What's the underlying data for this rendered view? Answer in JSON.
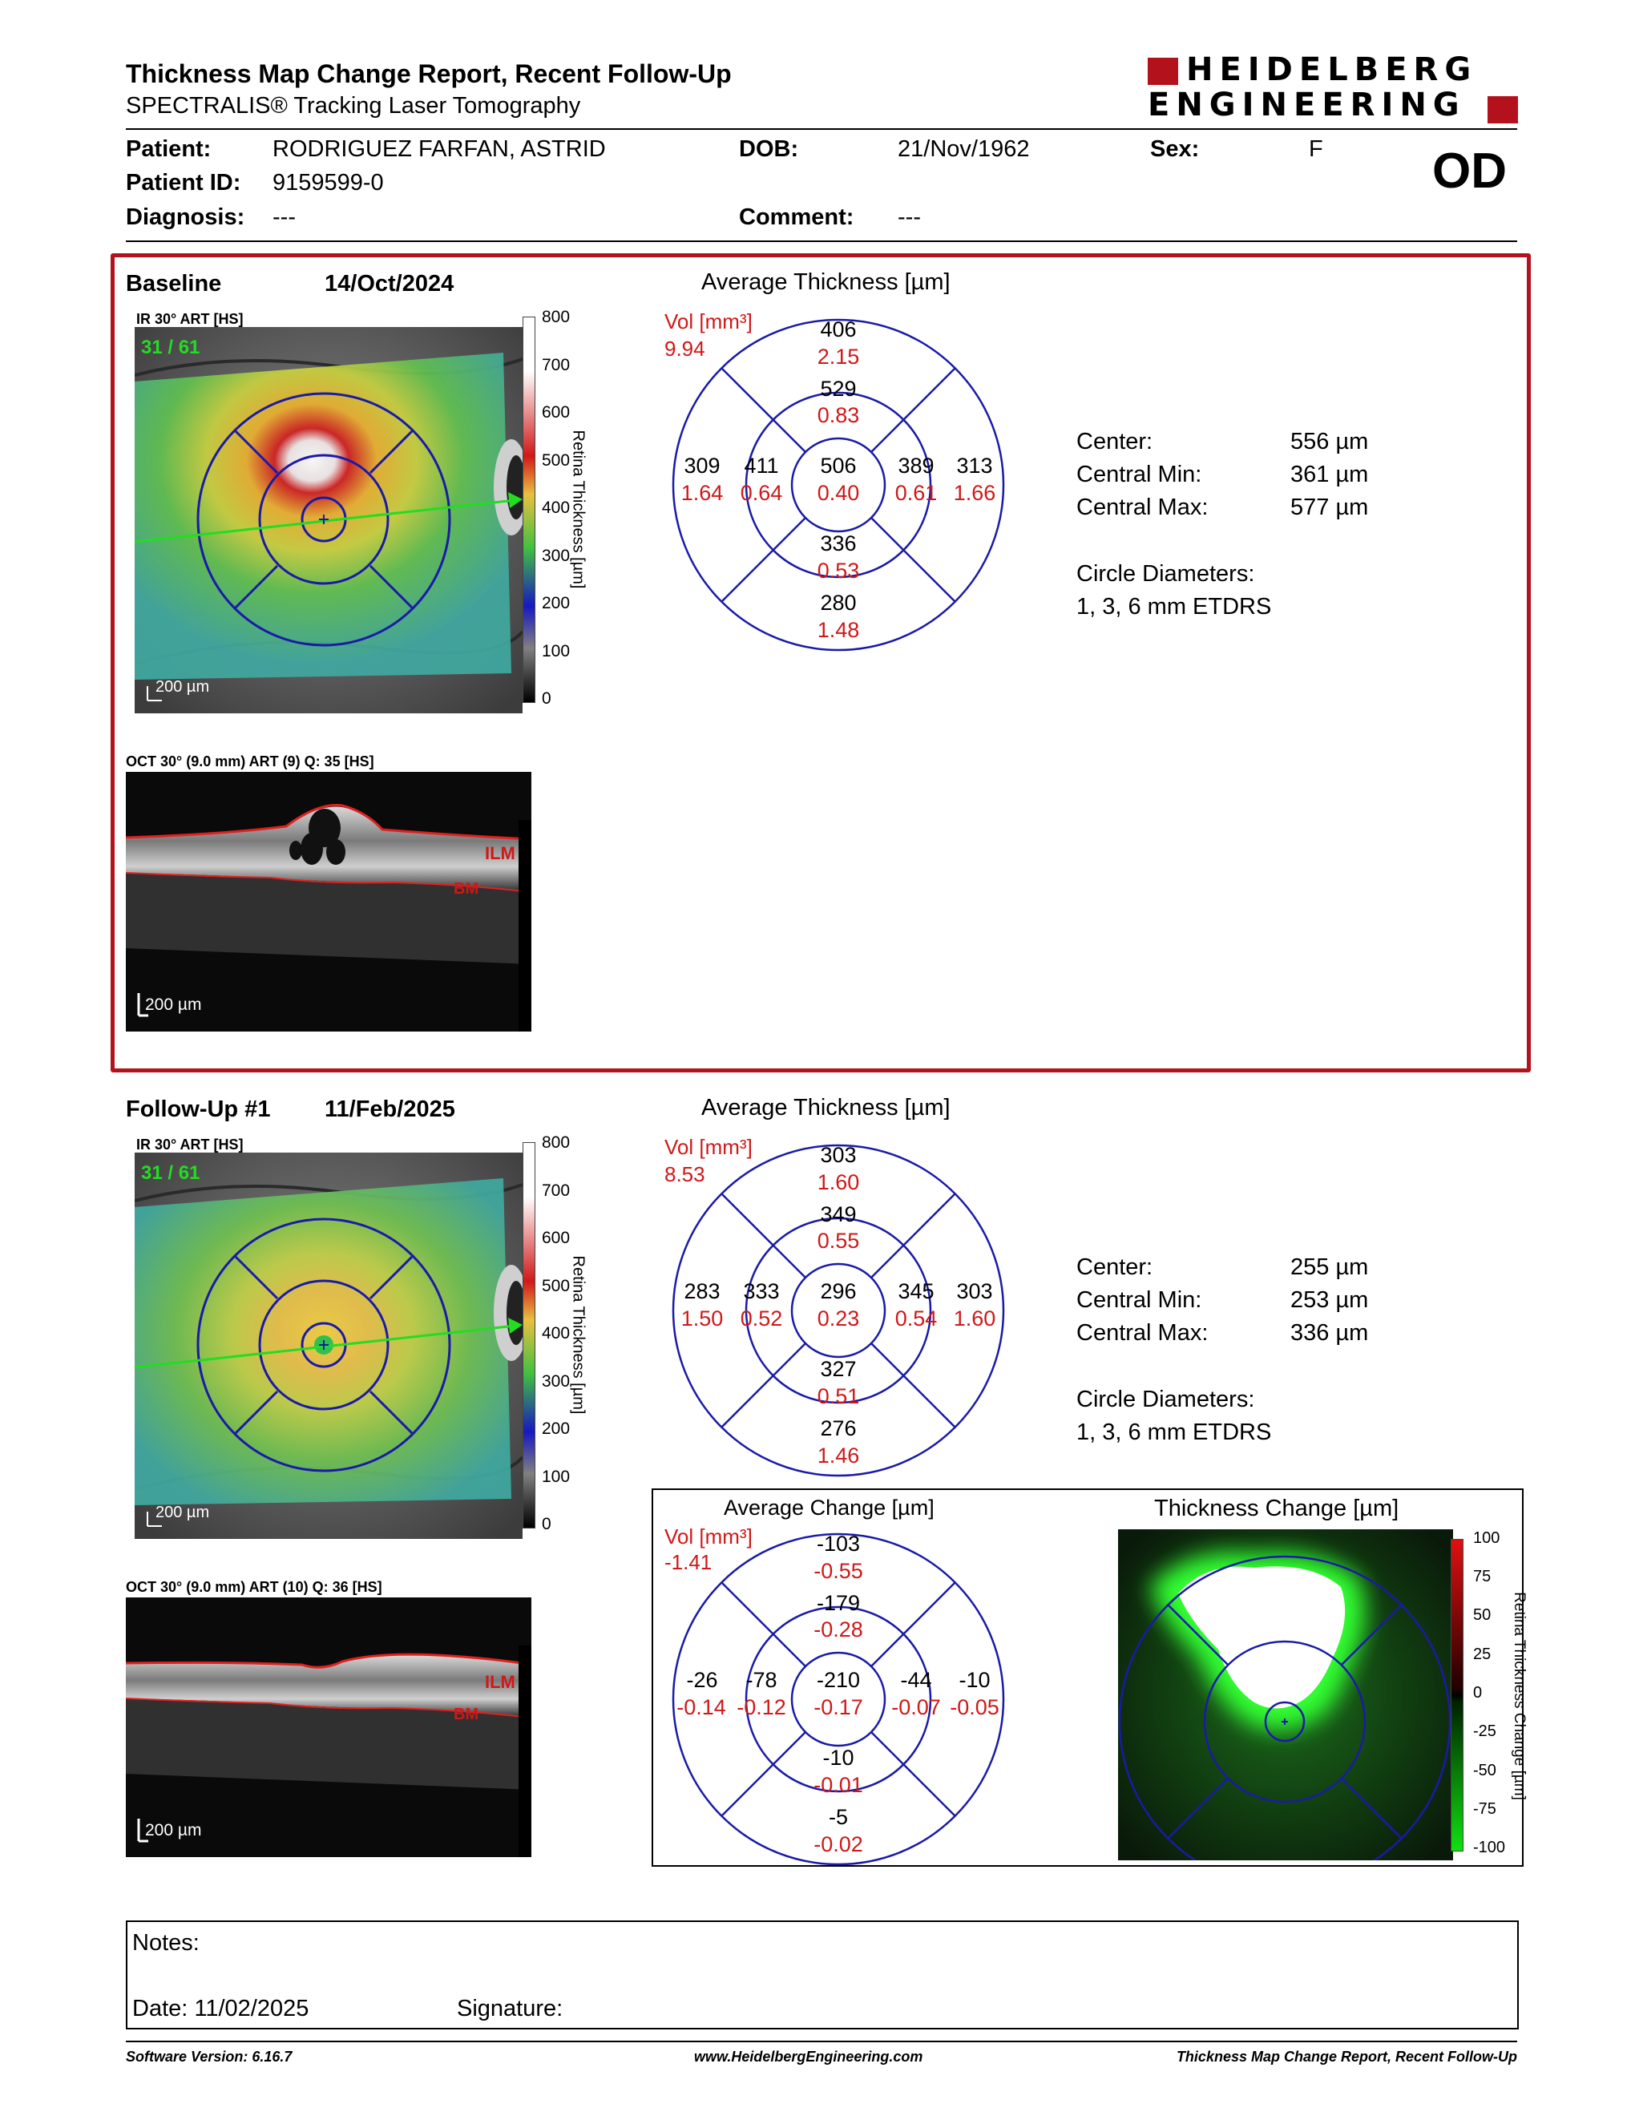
{
  "header": {
    "title": "Thickness Map Change Report, Recent Follow-Up",
    "subtitle": "SPECTRALIS® Tracking Laser Tomography",
    "logo_line1": "HEIDELBERG",
    "logo_line2": "ENGINEERING",
    "eye": "OD"
  },
  "patient": {
    "patient_label": "Patient:",
    "patient_value": "RODRIGUEZ FARFAN, ASTRID",
    "id_label": "Patient ID:",
    "id_value": "9159599-0",
    "diagnosis_label": "Diagnosis:",
    "diagnosis_value": "---",
    "dob_label": "DOB:",
    "dob_value": "21/Nov/1962",
    "comment_label": "Comment:",
    "comment_value": "---",
    "sex_label": "Sex:",
    "sex_value": "F"
  },
  "baseline": {
    "label": "Baseline",
    "date": "14/Oct/2024",
    "ir_label": "IR 30° ART [HS]",
    "frame_counter": "31 / 61",
    "scale_bar": "200 µm",
    "oct_label": "OCT 30° (9.0 mm) ART (9) Q: 35 [HS]",
    "oct_scale": "200 µm",
    "ilm": "ILM",
    "bm": "BM",
    "avg_title": "Average Thickness [µm]",
    "vol_label": "Vol [mm³]",
    "vol_value": "9.94",
    "sectors": {
      "outer_top": [
        "406",
        "2.15"
      ],
      "inner_top": [
        "529",
        "0.83"
      ],
      "outer_left": [
        "309",
        "1.64"
      ],
      "inner_left": [
        "411",
        "0.64"
      ],
      "center": [
        "506",
        "0.40"
      ],
      "inner_right": [
        "389",
        "0.61"
      ],
      "outer_right": [
        "313",
        "1.66"
      ],
      "inner_bottom": [
        "336",
        "0.53"
      ],
      "outer_bottom": [
        "280",
        "1.48"
      ]
    },
    "stats": {
      "center_label": "Center:",
      "center_value": "556 µm",
      "min_label": "Central Min:",
      "min_value": "361 µm",
      "max_label": "Central Max:",
      "max_value": "577 µm",
      "diam_label": "Circle Diameters:",
      "diam_value": "1, 3, 6 mm ETDRS"
    }
  },
  "followup": {
    "label": "Follow-Up #1",
    "date": "11/Feb/2025",
    "ir_label": "IR 30° ART [HS]",
    "frame_counter": "31 / 61",
    "scale_bar": "200 µm",
    "oct_label": "OCT 30° (9.0 mm) ART (10) Q: 36 [HS]",
    "oct_scale": "200 µm",
    "ilm": "ILM",
    "bm": "BM",
    "avg_title": "Average Thickness [µm]",
    "vol_label": "Vol [mm³]",
    "vol_value": "8.53",
    "sectors": {
      "outer_top": [
        "303",
        "1.60"
      ],
      "inner_top": [
        "349",
        "0.55"
      ],
      "outer_left": [
        "283",
        "1.50"
      ],
      "inner_left": [
        "333",
        "0.52"
      ],
      "center": [
        "296",
        "0.23"
      ],
      "inner_right": [
        "345",
        "0.54"
      ],
      "outer_right": [
        "303",
        "1.60"
      ],
      "inner_bottom": [
        "327",
        "0.51"
      ],
      "outer_bottom": [
        "276",
        "1.46"
      ]
    },
    "stats": {
      "center_label": "Center:",
      "center_value": "255 µm",
      "min_label": "Central Min:",
      "min_value": "253 µm",
      "max_label": "Central Max:",
      "max_value": "336 µm",
      "diam_label": "Circle Diameters:",
      "diam_value": "1, 3, 6 mm ETDRS"
    }
  },
  "change": {
    "avg_title": "Average Change [µm]",
    "vol_label": "Vol [mm³]",
    "vol_value": "-1.41",
    "sectors": {
      "outer_top": [
        "-103",
        "-0.55"
      ],
      "inner_top": [
        "-179",
        "-0.28"
      ],
      "outer_left": [
        "-26",
        "-0.14"
      ],
      "inner_left": [
        "-78",
        "-0.12"
      ],
      "center": [
        "-210",
        "-0.17"
      ],
      "inner_right": [
        "-44",
        "-0.07"
      ],
      "outer_right": [
        "-10",
        "-0.05"
      ],
      "inner_bottom": [
        "-10",
        "-0.01"
      ],
      "outer_bottom": [
        "-5",
        "-0.02"
      ]
    },
    "map_title": "Thickness Change [µm]",
    "scale_label": "Retina Thickness Change [µm]",
    "ticks": [
      "100",
      "75",
      "50",
      "25",
      "0",
      "-25",
      "-50",
      "-75",
      "-100"
    ]
  },
  "thickness_scale": {
    "label": "Retina Thickness [µm]",
    "ticks": [
      "800",
      "700",
      "600",
      "500",
      "400",
      "300",
      "200",
      "100",
      "0"
    ]
  },
  "notes": {
    "notes_label": "Notes:",
    "date_label": "Date: 11/02/2025",
    "signature_label": "Signature:"
  },
  "footer": {
    "software": "Software Version: 6.16.7",
    "url": "www.HeidelbergEngineering.com",
    "report": "Thickness Map Change Report, Recent Follow-Up"
  },
  "colors": {
    "red_text": "#d01818",
    "circle_blue": "#1a1aa8",
    "frame_red": "#b3121c"
  }
}
